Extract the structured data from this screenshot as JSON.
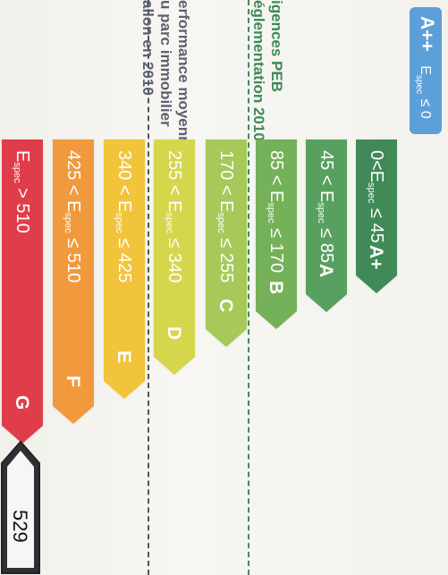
{
  "badge": {
    "label": "A++",
    "condition": "E",
    "condition_sub": "spec",
    "condition_tail": "≤ 0"
  },
  "headers": {
    "peb_line1": "igences PEB",
    "peb_line2": "églementation 2010",
    "perf_line1": "erformance moyenne",
    "perf_line2": "u parc immobilier",
    "perf_line3": "allon en 2010"
  },
  "bands": [
    {
      "letter": "A+",
      "pre": "0<E",
      "sub": "spec",
      "post": "≤ 45",
      "color": "#3f8a57"
    },
    {
      "letter": "A",
      "pre": "45 < E",
      "sub": "spec",
      "post": "≤ 85",
      "color": "#58a05f"
    },
    {
      "letter": "B",
      "pre": "85 < E",
      "sub": "spec",
      "post": "≤ 170",
      "color": "#74b158"
    },
    {
      "letter": "C",
      "pre": "170 < E",
      "sub": "spec",
      "post": "≤ 255",
      "color": "#a7c95a"
    },
    {
      "letter": "D",
      "pre": "255 < E",
      "sub": "spec",
      "post": "≤ 340",
      "color": "#d4d74c"
    },
    {
      "letter": "E",
      "pre": "340 < E",
      "sub": "spec",
      "post": "≤ 425",
      "color": "#f2c43b"
    },
    {
      "letter": "F",
      "pre": "425 < E",
      "sub": "spec",
      "post": "≤ 510",
      "color": "#f09a3d"
    },
    {
      "letter": "G",
      "pre": "E",
      "sub": "spec",
      "post": "> 510",
      "color": "#e03d4a"
    }
  ],
  "result": {
    "value": "529"
  },
  "colors": {
    "peb_green": "#3e8c5c",
    "perf_gray": "#5a6170",
    "badge_blue": "#5d9fd8",
    "result_dark": "#2f3034"
  }
}
